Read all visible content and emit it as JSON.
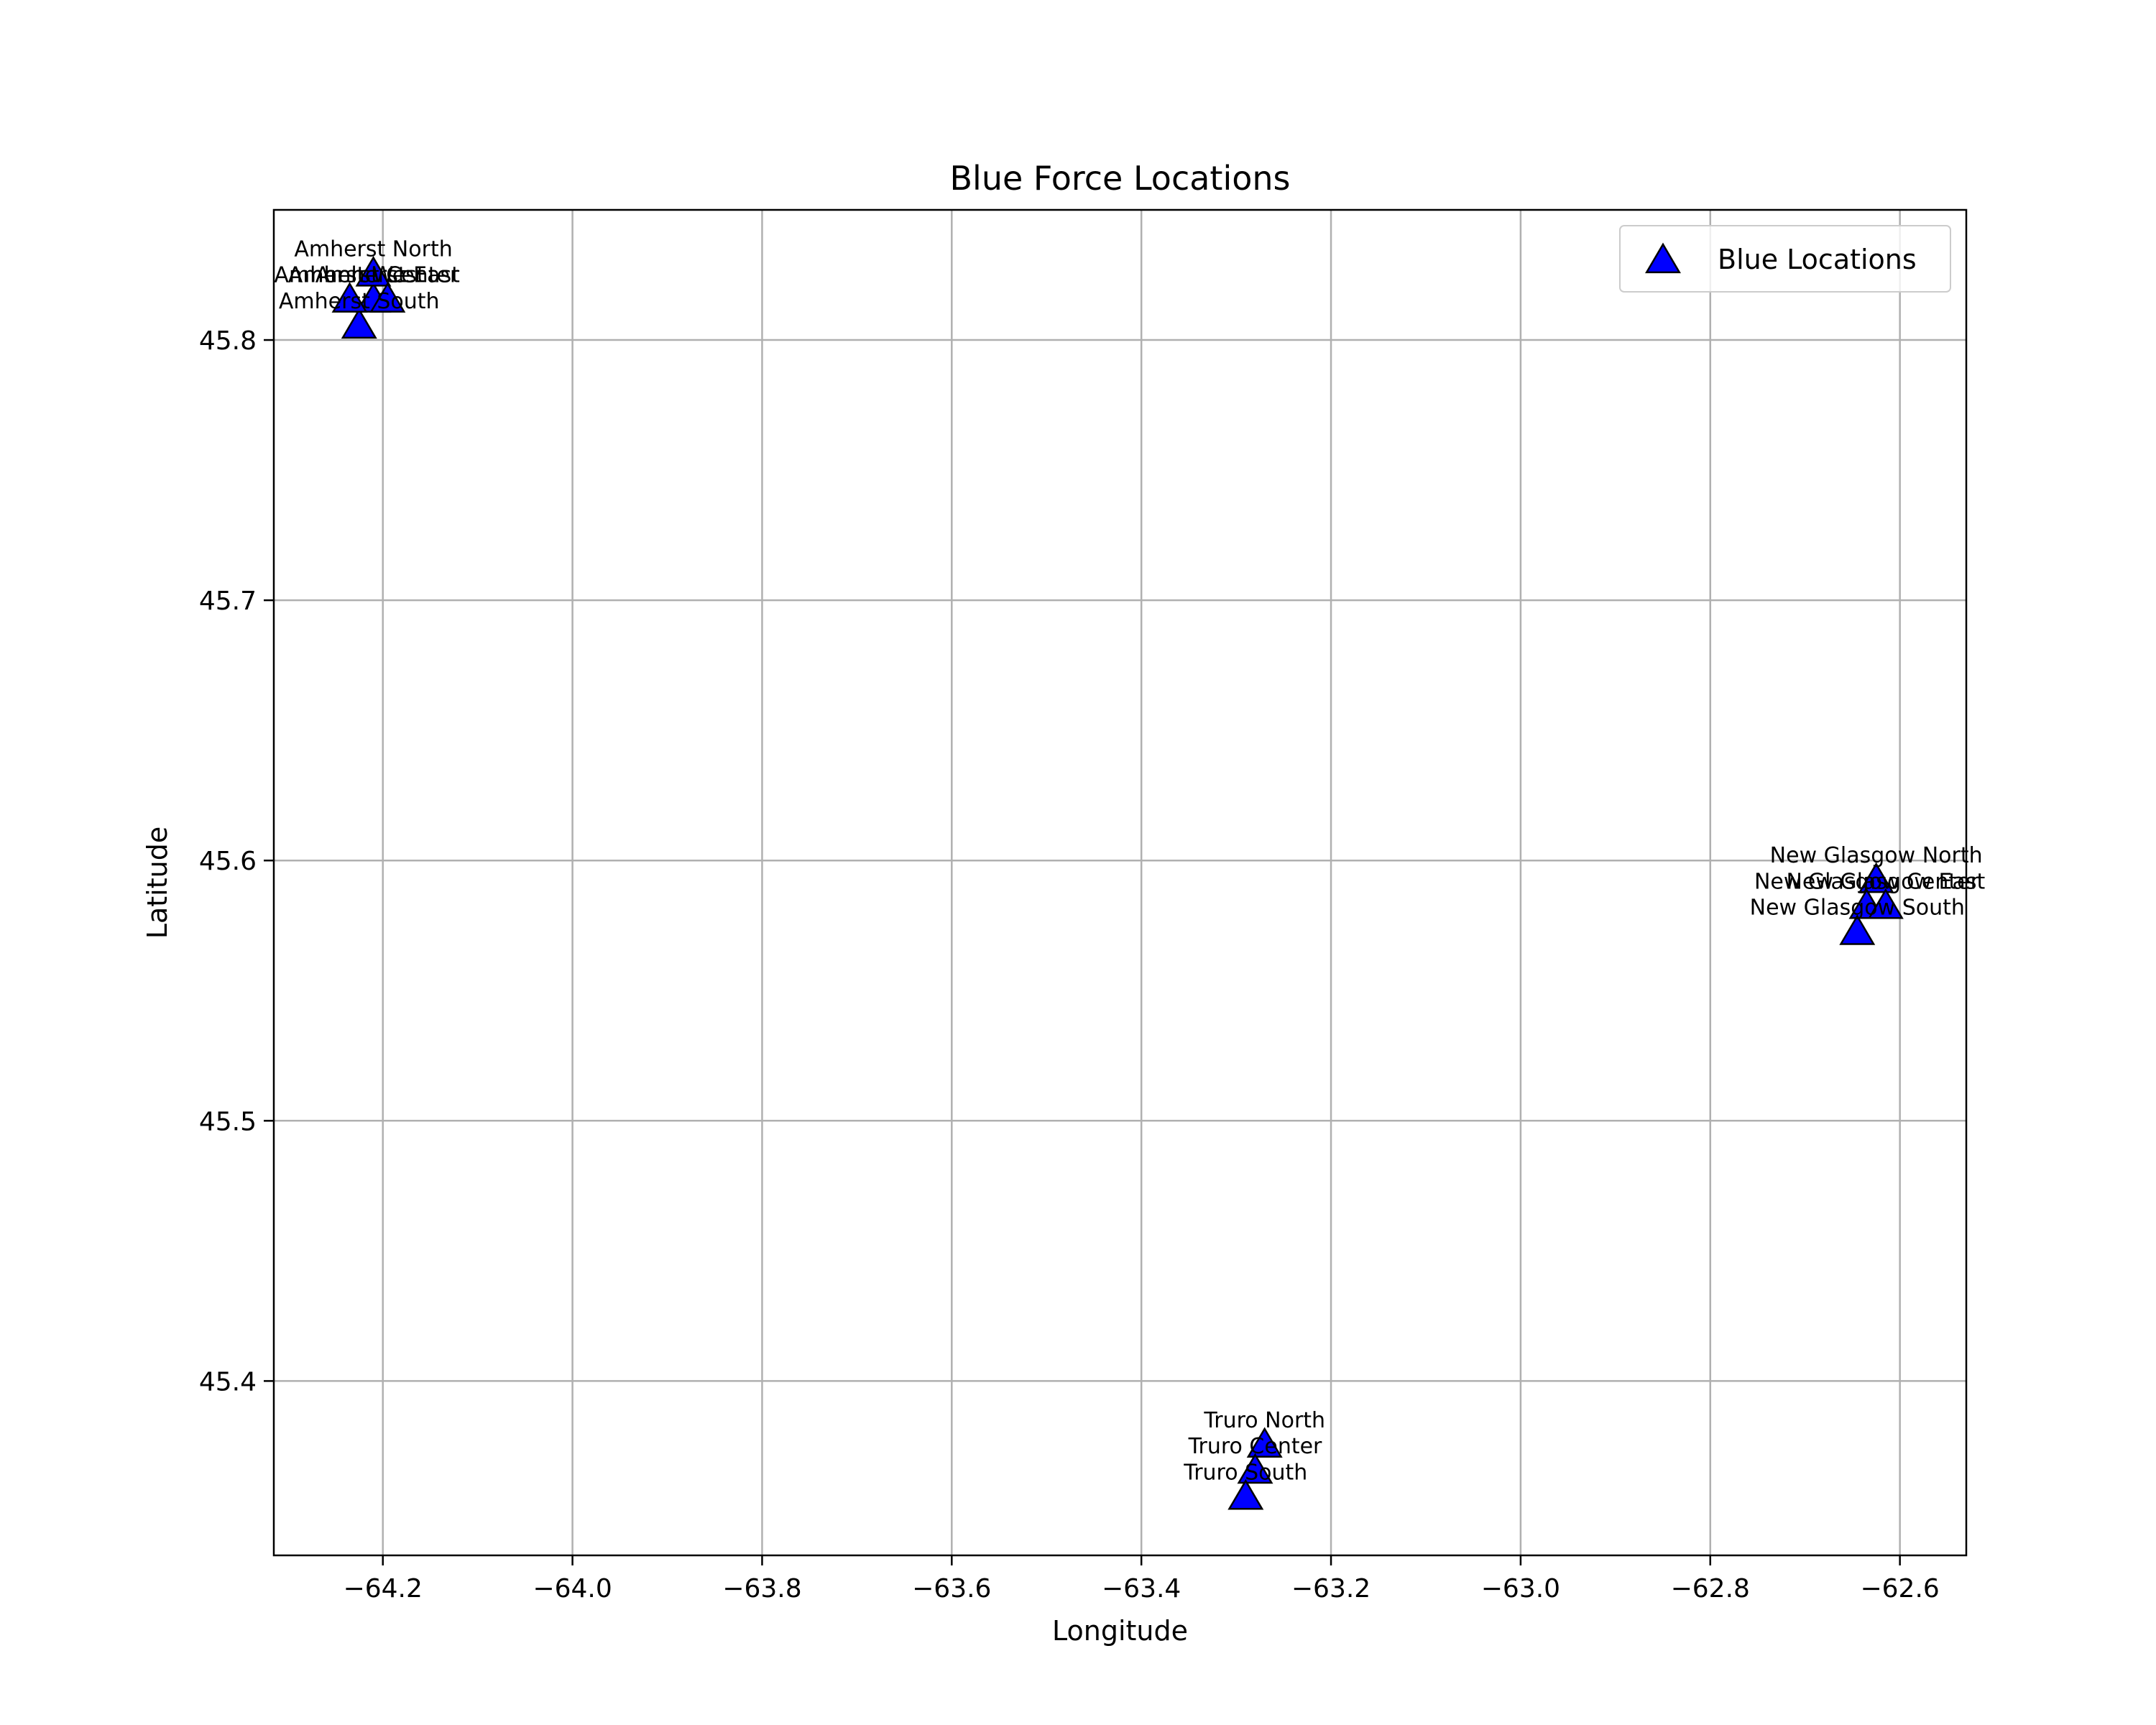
{
  "chart_data": {
    "type": "scatter",
    "title": "Blue Force Locations",
    "xlabel": "Longitude",
    "ylabel": "Latitude",
    "xlim": [
      -64.315,
      -62.53
    ],
    "ylim": [
      45.333,
      45.85
    ],
    "xticks": [
      -64.2,
      -64.0,
      -63.8,
      -63.6,
      -63.4,
      -63.2,
      -63.0,
      -62.8,
      -62.6
    ],
    "yticks": [
      45.4,
      45.5,
      45.6,
      45.7,
      45.8
    ],
    "grid": true,
    "legend_position": "top-right",
    "colors": {
      "marker_fill": "#0000ff",
      "marker_edge": "#000000",
      "grid": "#b0b0b0"
    },
    "series": [
      {
        "name": "Blue Locations",
        "marker": "triangle",
        "points": [
          {
            "label": "Amherst Center",
            "x": -64.21,
            "y": 45.815
          },
          {
            "label": "Amherst North",
            "x": -64.21,
            "y": 45.825
          },
          {
            "label": "Amherst South",
            "x": -64.225,
            "y": 45.805
          },
          {
            "label": "Amherst East",
            "x": -64.195,
            "y": 45.815
          },
          {
            "label": "Amherst West",
            "x": -64.235,
            "y": 45.815
          },
          {
            "label": "Truro North",
            "x": -63.27,
            "y": 45.375
          },
          {
            "label": "Truro Center",
            "x": -63.28,
            "y": 45.365
          },
          {
            "label": "Truro South",
            "x": -63.29,
            "y": 45.355
          },
          {
            "label": "New Glasgow North",
            "x": -62.625,
            "y": 45.592
          },
          {
            "label": "New Glasgow Center",
            "x": -62.635,
            "y": 45.582
          },
          {
            "label": "New Glasgow East",
            "x": -62.615,
            "y": 45.582
          },
          {
            "label": "New Glasgow South",
            "x": -62.645,
            "y": 45.572
          }
        ]
      }
    ]
  }
}
